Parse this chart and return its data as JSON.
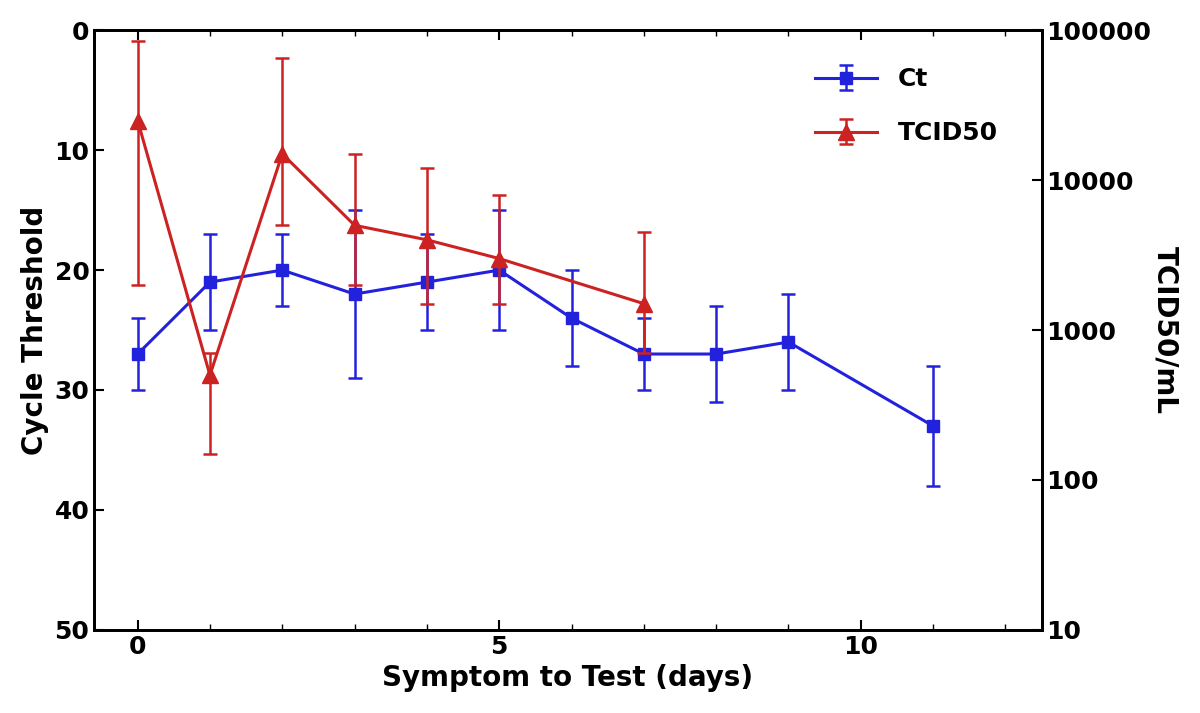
{
  "ct_x": [
    0,
    1,
    2,
    3,
    4,
    5,
    6,
    7,
    8,
    9,
    11
  ],
  "ct_y": [
    27,
    21,
    20,
    22,
    21,
    20,
    24,
    27,
    27,
    26,
    33
  ],
  "ct_yerr_low": [
    3,
    4,
    3,
    7,
    4,
    5,
    4,
    3,
    4,
    4,
    5
  ],
  "ct_yerr_high": [
    3,
    4,
    3,
    7,
    4,
    5,
    4,
    3,
    4,
    4,
    5
  ],
  "tcid_x": [
    0,
    1,
    2,
    3,
    4,
    5,
    7
  ],
  "tcid_y": [
    25000,
    500,
    15000,
    5000,
    4000,
    3000,
    1500
  ],
  "tcid_yerr_low": [
    23000,
    350,
    10000,
    3000,
    2500,
    1500,
    800
  ],
  "tcid_yerr_high": [
    60000,
    200,
    50000,
    10000,
    8000,
    5000,
    3000
  ],
  "ct_color": "#2222DD",
  "tcid_color": "#CC2222",
  "background_color": "#FFFFFF",
  "xlabel": "Symptom to Test (days)",
  "ylabel_left": "Cycle Threshold",
  "ylabel_right": "TCID50/mL",
  "legend_ct": "Ct",
  "legend_tcid": "TCID50",
  "xlim": [
    -0.6,
    12.5
  ],
  "ylim_left": [
    50,
    0
  ],
  "ylim_right": [
    10,
    100000
  ],
  "xticks": [
    0,
    5,
    10
  ],
  "yticks_left": [
    0,
    10,
    20,
    30,
    40,
    50
  ],
  "yticks_right": [
    10,
    100,
    1000,
    10000,
    100000
  ],
  "ytick_right_labels": [
    "10",
    "100",
    "1000",
    "10000",
    "100000"
  ],
  "label_fontsize": 20,
  "tick_fontsize": 18,
  "legend_fontsize": 18,
  "linewidth": 2.2,
  "markersize": 9,
  "capsize": 5,
  "elinewidth": 1.8
}
